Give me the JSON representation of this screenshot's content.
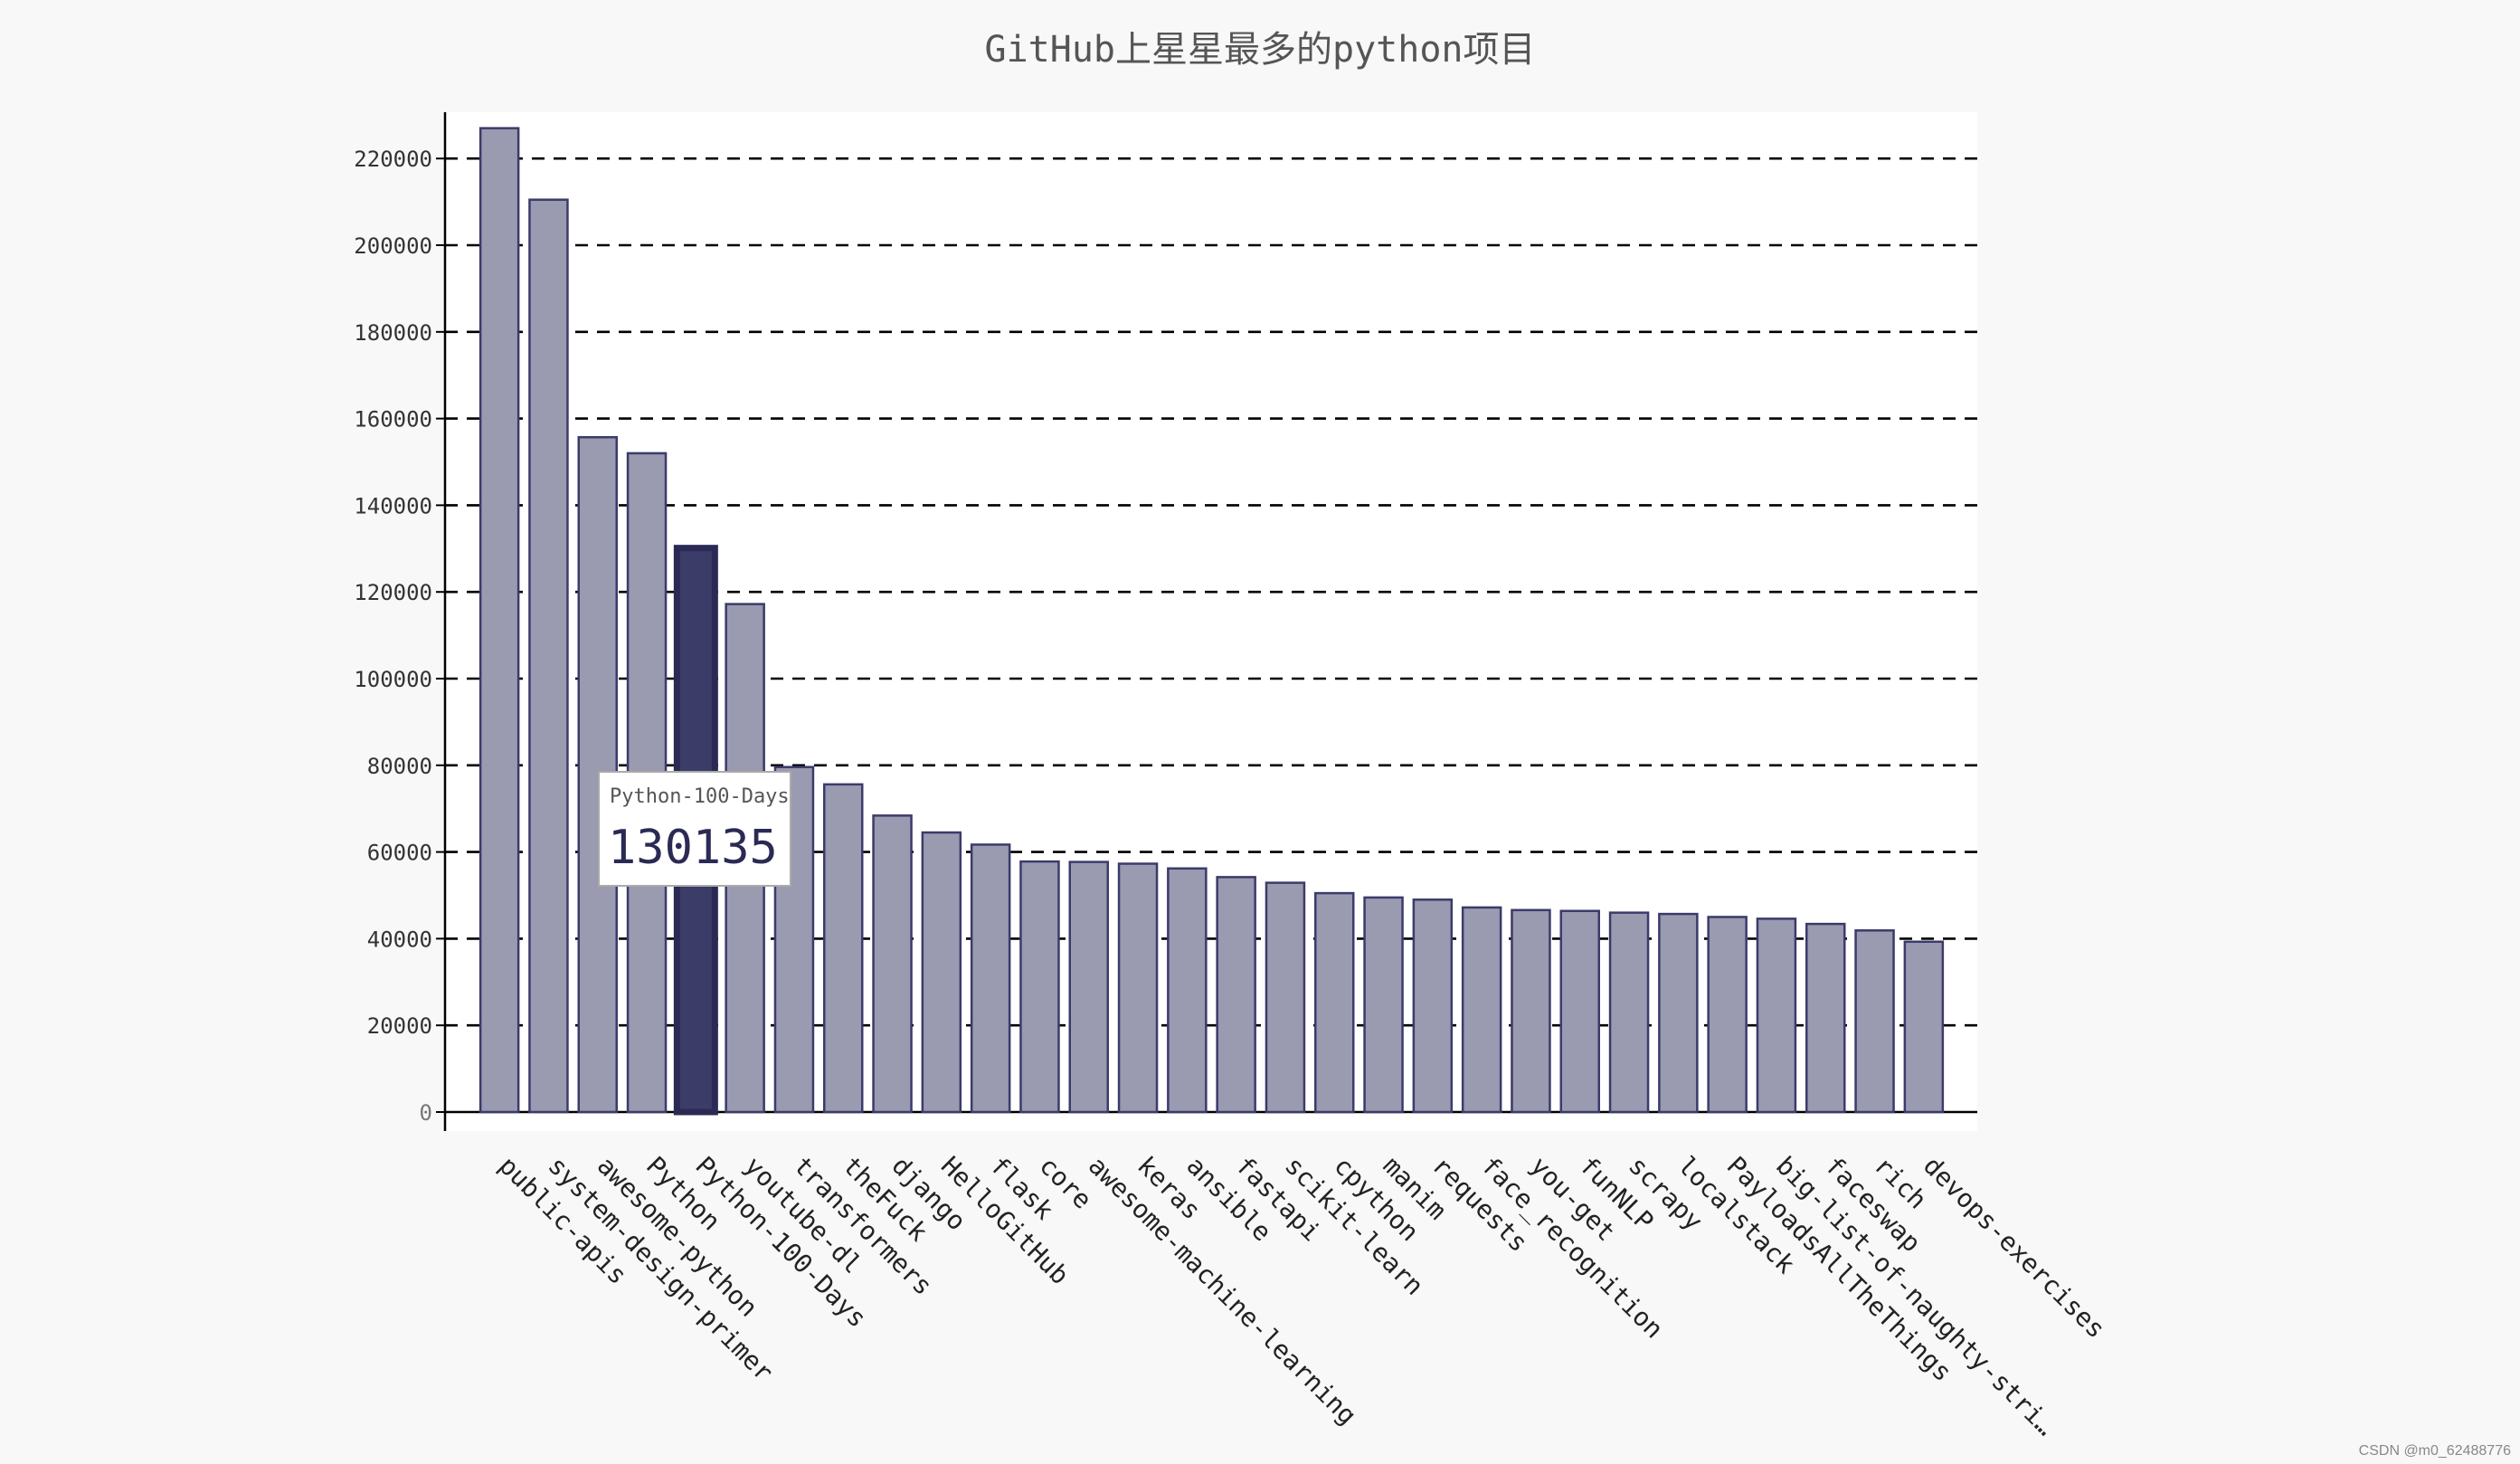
{
  "chart_data": {
    "type": "bar",
    "title": "GitHub上星星最多的python项目",
    "xlabel": "",
    "ylabel": "",
    "ylim": [
      0,
      230000
    ],
    "yticks": [
      "0",
      "20000",
      "40000",
      "60000",
      "80000",
      "100000",
      "120000",
      "140000",
      "160000",
      "180000",
      "200000",
      "220000"
    ],
    "grid": "horizontal dashed",
    "categories": [
      "public-apis",
      "system-design-primer",
      "awesome-python",
      "Python",
      "Python-100-Days",
      "youtube-dl",
      "transformers",
      "theFuck",
      "django",
      "HelloGitHub",
      "flask",
      "core",
      "awesome-machine-learning",
      "keras",
      "ansible",
      "fastapi",
      "scikit-learn",
      "cpython",
      "manim",
      "requests",
      "face_recognition",
      "you-get",
      "funNLP",
      "scrapy",
      "localstack",
      "PayloadsAllTheThings",
      "big-list-of-naughty-stri…",
      "faceswap",
      "rich",
      "devops-exercises"
    ],
    "values": [
      227000,
      210500,
      155700,
      152000,
      130135,
      117200,
      79600,
      75600,
      68400,
      64500,
      61700,
      57800,
      57700,
      57300,
      56200,
      54200,
      52900,
      50500,
      49500,
      49000,
      47200,
      46600,
      46400,
      46000,
      45700,
      45000,
      44600,
      43400,
      41900,
      39300
    ],
    "highlight": {
      "category": "Python-100-Days",
      "label": "Python-100-Days",
      "value": "130135"
    },
    "colors": {
      "bar_fill": "#9a9ab0",
      "bar_stroke": "#3b3b6b",
      "highlight_fill": "#3c3c68",
      "plot_bg": "#ffffff",
      "page_bg": "#f8f8f8"
    }
  },
  "watermark": "CSDN @m0_62488776"
}
